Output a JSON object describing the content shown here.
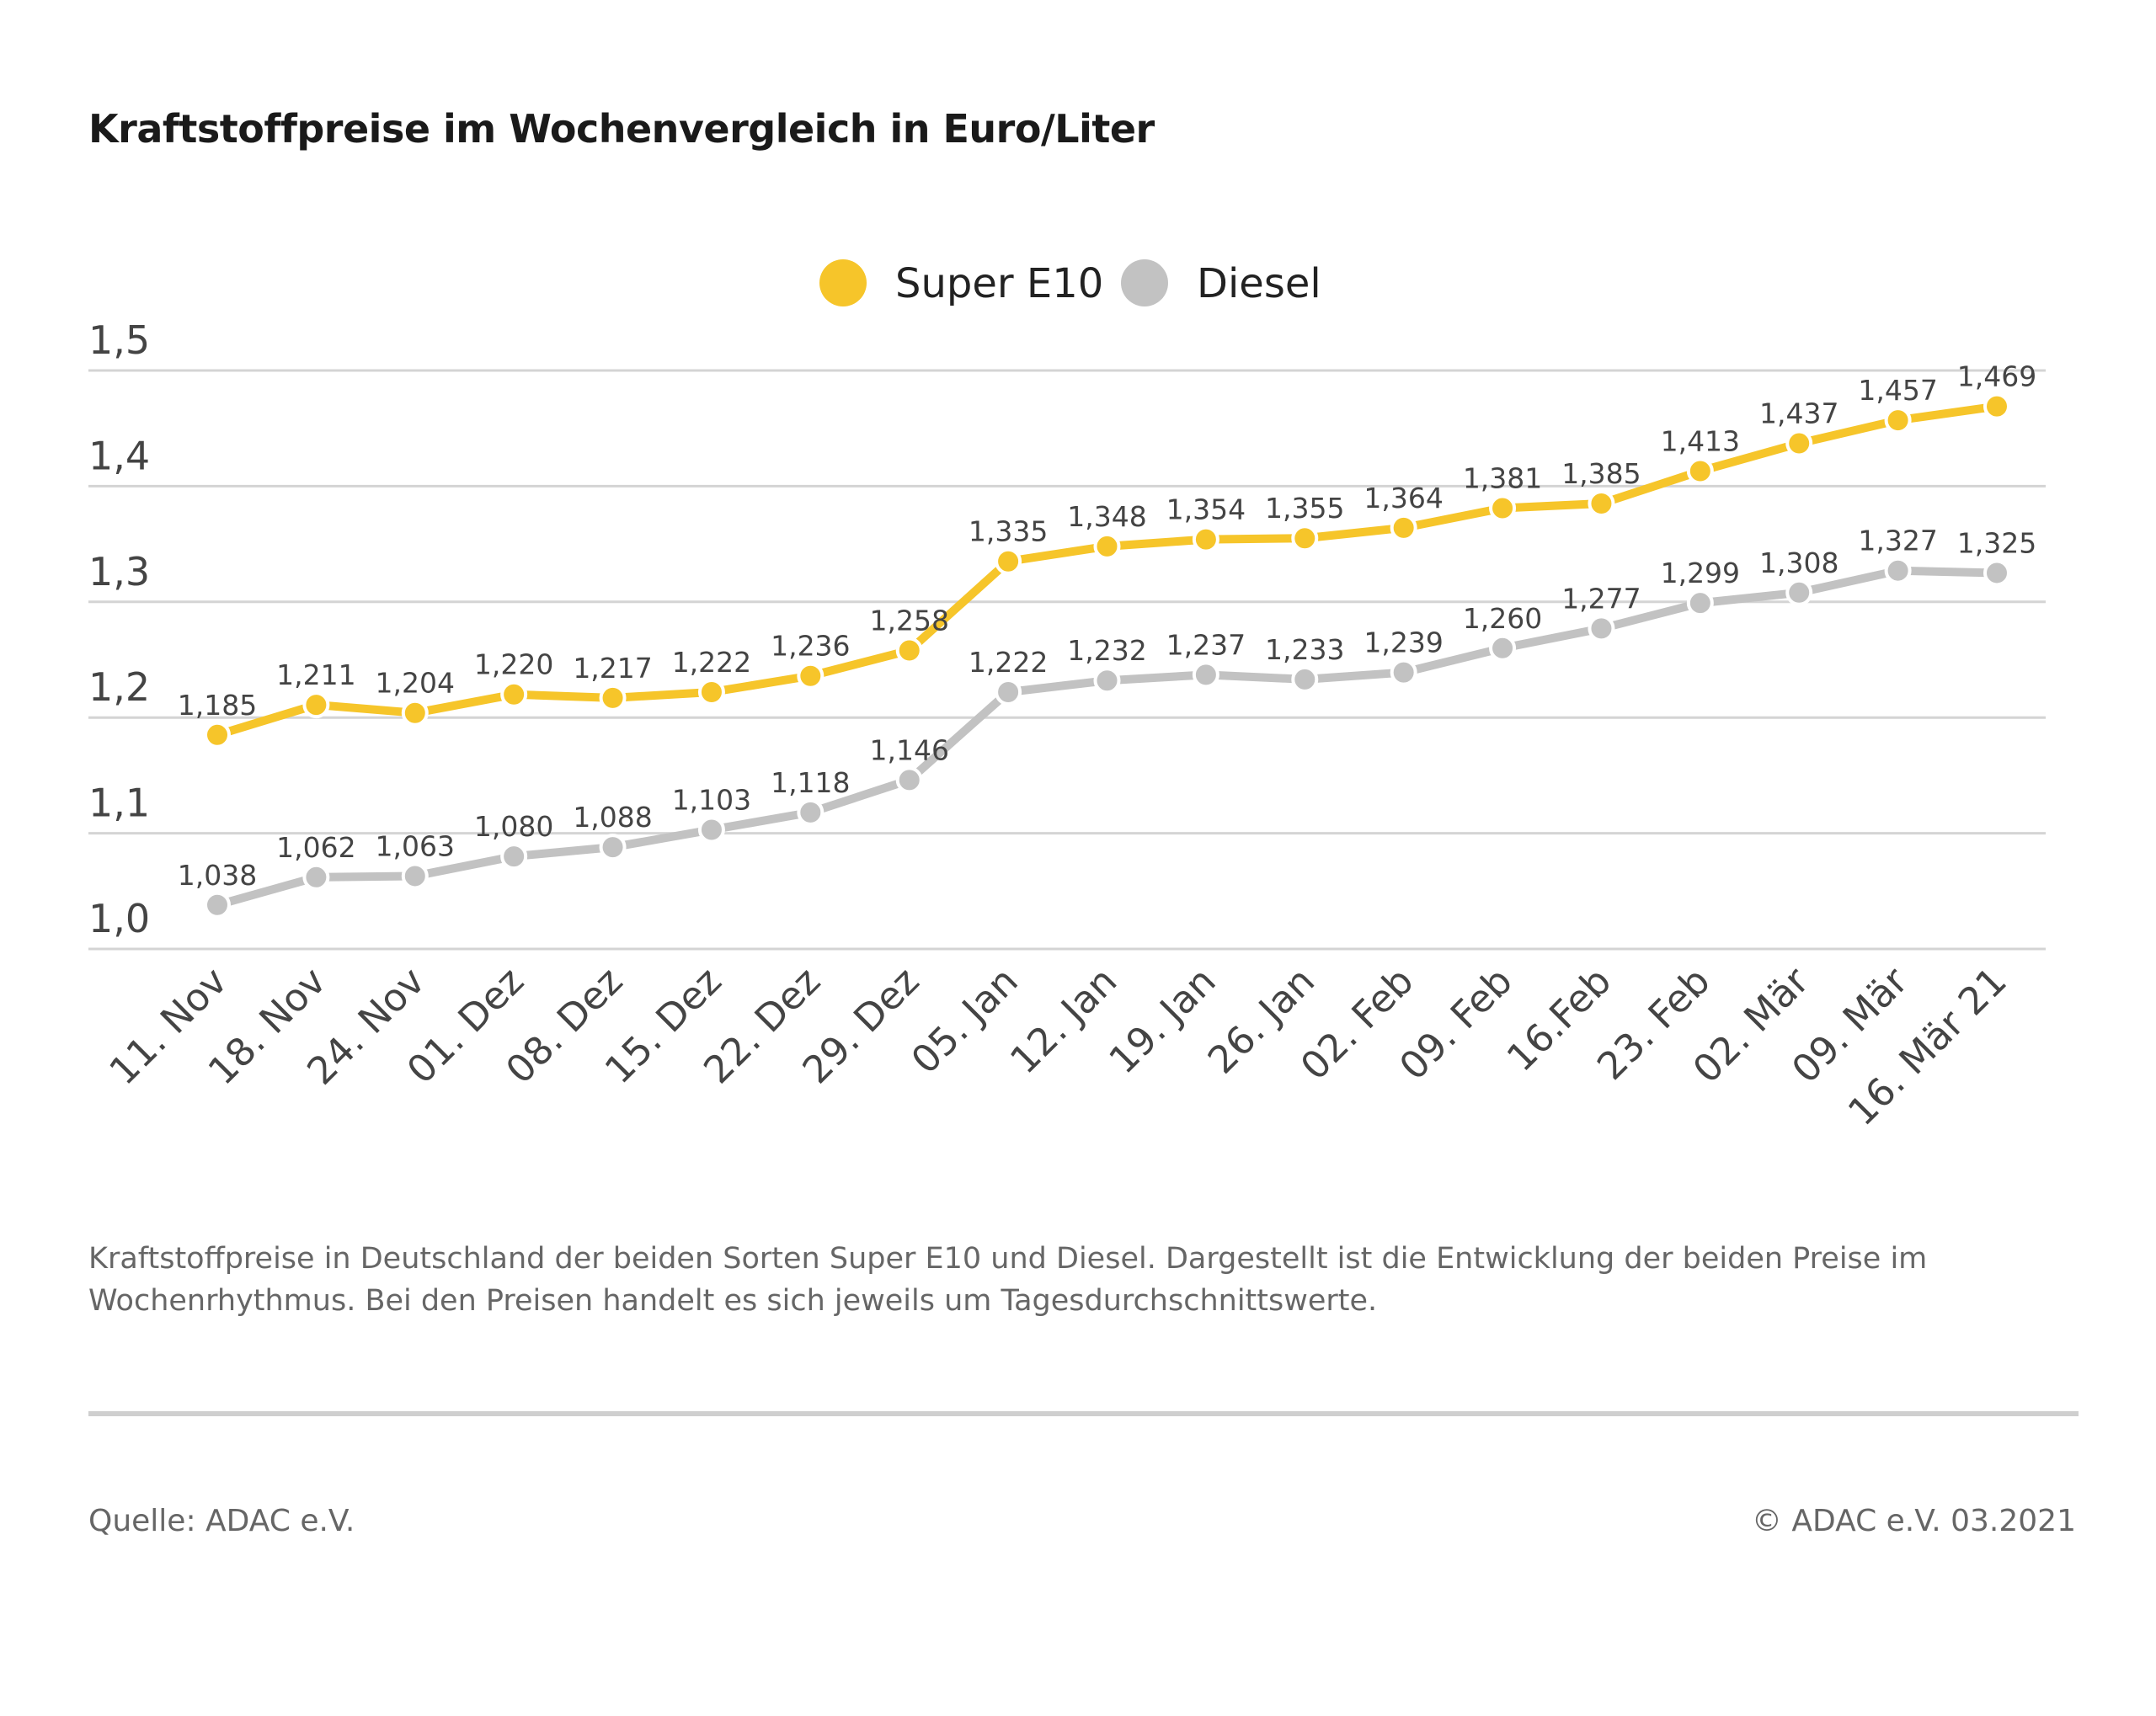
{
  "chart_data": {
    "type": "line",
    "title": "Kraftstoffpreise im Wochenvergleich in Euro/Liter",
    "categories": [
      "11. Nov",
      "18. Nov",
      "24. Nov",
      "01. Dez",
      "08. Dez",
      "15. Dez",
      "22. Dez",
      "29. Dez",
      "05. Jan",
      "12. Jan",
      "19. Jan",
      "26. Jan",
      "02. Feb",
      "09. Feb",
      "16.Feb",
      "23. Feb",
      "02. Mär",
      "09. Mär",
      "16. Mär 21"
    ],
    "series": [
      {
        "name": "Super E10",
        "color": "#f6c52a",
        "values": [
          1.185,
          1.211,
          1.204,
          1.22,
          1.217,
          1.222,
          1.236,
          1.258,
          1.335,
          1.348,
          1.354,
          1.355,
          1.364,
          1.381,
          1.385,
          1.413,
          1.437,
          1.457,
          1.469
        ],
        "labels": [
          "1,185",
          "1,211",
          "1,204",
          "1,220",
          "1,217",
          "1,222",
          "1,236",
          "1,258",
          "1,335",
          "1,348",
          "1,354",
          "1,355",
          "1,364",
          "1,381",
          "1,385",
          "1,413",
          "1,437",
          "1,457",
          "1,469"
        ]
      },
      {
        "name": "Diesel",
        "color": "#c2c2c2",
        "values": [
          1.038,
          1.062,
          1.063,
          1.08,
          1.088,
          1.103,
          1.118,
          1.146,
          1.222,
          1.232,
          1.237,
          1.233,
          1.239,
          1.26,
          1.277,
          1.299,
          1.308,
          1.327,
          1.325
        ],
        "labels": [
          "1,038",
          "1,062",
          "1,063",
          "1,080",
          "1,088",
          "1,103",
          "1,118",
          "1,146",
          "1,222",
          "1,232",
          "1,237",
          "1,233",
          "1,239",
          "1,260",
          "1,277",
          "1,299",
          "1,308",
          "1,327",
          "1,325"
        ]
      }
    ],
    "yticks": [
      1.0,
      1.1,
      1.2,
      1.3,
      1.4,
      1.5
    ],
    "ytick_labels": [
      "1,0",
      "1,1",
      "1,2",
      "1,3",
      "1,4",
      "1,5"
    ],
    "ylim": [
      1.0,
      1.5
    ],
    "grid": true,
    "legend_position": "top-center",
    "xlabel": "",
    "ylabel": ""
  },
  "caption": "Kraftstoffpreise in Deutschland der beiden Sorten Super E10 und Diesel. Dargestellt ist die Entwicklung der beiden Preise im Wochenrhythmus. Bei den Preisen handelt es sich jeweils um Tagesdurchschnittswerte.",
  "footer": {
    "source": "Quelle: ADAC e.V.",
    "copyright": "© ADAC e.V. 03.2021"
  }
}
